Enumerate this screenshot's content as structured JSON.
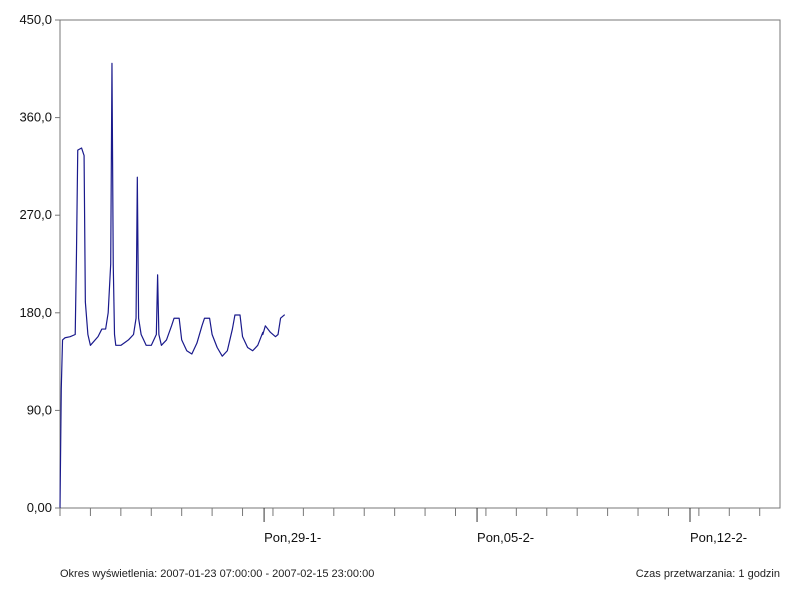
{
  "chart_data": {
    "type": "line",
    "title": "",
    "xlabel": "",
    "ylabel": "",
    "ylim": [
      0,
      450
    ],
    "yticks": [
      0,
      90,
      180,
      270,
      360,
      450
    ],
    "ytick_labels": [
      "0,00",
      "90,0",
      "180,0",
      "270,0",
      "360,0",
      "450,0"
    ],
    "grid": false,
    "legend": "none",
    "line_color": "#1a1a8c",
    "frame_color": "#777777",
    "x_start": "2007-01-23 07:00",
    "x_end": "2007-02-15 23:00",
    "x_unit": "hours since 2007-01-23 07:00",
    "x_range": [
      0,
      568
    ],
    "xtick_labels": [
      {
        "x": 161,
        "label": "Pon,29-1-"
      },
      {
        "x": 329,
        "label": "Pon,05-2-"
      },
      {
        "x": 497,
        "label": "Pon,12-2-"
      }
    ],
    "series": [
      {
        "name": "",
        "points": [
          [
            0,
            0
          ],
          [
            1,
            110
          ],
          [
            2,
            155
          ],
          [
            4,
            157
          ],
          [
            8,
            158
          ],
          [
            12,
            160
          ],
          [
            13,
            235
          ],
          [
            14,
            330
          ],
          [
            17,
            332
          ],
          [
            19,
            325
          ],
          [
            20,
            190
          ],
          [
            22,
            160
          ],
          [
            24,
            150
          ],
          [
            30,
            158
          ],
          [
            33,
            165
          ],
          [
            36,
            165
          ],
          [
            38,
            180
          ],
          [
            40,
            225
          ],
          [
            41,
            410
          ],
          [
            42,
            225
          ],
          [
            43,
            160
          ],
          [
            44,
            150
          ],
          [
            48,
            150
          ],
          [
            54,
            155
          ],
          [
            58,
            160
          ],
          [
            60,
            175
          ],
          [
            61,
            305
          ],
          [
            62,
            175
          ],
          [
            64,
            160
          ],
          [
            66,
            155
          ],
          [
            68,
            150
          ],
          [
            70,
            150
          ],
          [
            72,
            150
          ],
          [
            76,
            160
          ],
          [
            77,
            215
          ],
          [
            78,
            160
          ],
          [
            80,
            150
          ],
          [
            84,
            155
          ],
          [
            88,
            168
          ],
          [
            90,
            175
          ],
          [
            94,
            175
          ],
          [
            96,
            155
          ],
          [
            100,
            145
          ],
          [
            104,
            142
          ],
          [
            108,
            152
          ],
          [
            112,
            168
          ],
          [
            114,
            175
          ],
          [
            118,
            175
          ],
          [
            120,
            160
          ],
          [
            124,
            148
          ],
          [
            128,
            140
          ],
          [
            132,
            145
          ],
          [
            136,
            165
          ],
          [
            138,
            178
          ],
          [
            142,
            178
          ],
          [
            144,
            158
          ],
          [
            148,
            148
          ],
          [
            152,
            145
          ],
          [
            156,
            150
          ],
          [
            160,
            162
          ],
          [
            162,
            168
          ],
          [
            166,
            162
          ],
          [
            170,
            158
          ],
          [
            172,
            160
          ],
          [
            174,
            175
          ],
          [
            177,
            178
          ],
          [
            160,
            160
          ]
        ]
      }
    ]
  },
  "footer": {
    "left": "Okres wyświetlenia: 2007-01-23 07:00:00 - 2007-02-15 23:00:00",
    "right": "Czas przetwarzania: 1 godzin"
  }
}
